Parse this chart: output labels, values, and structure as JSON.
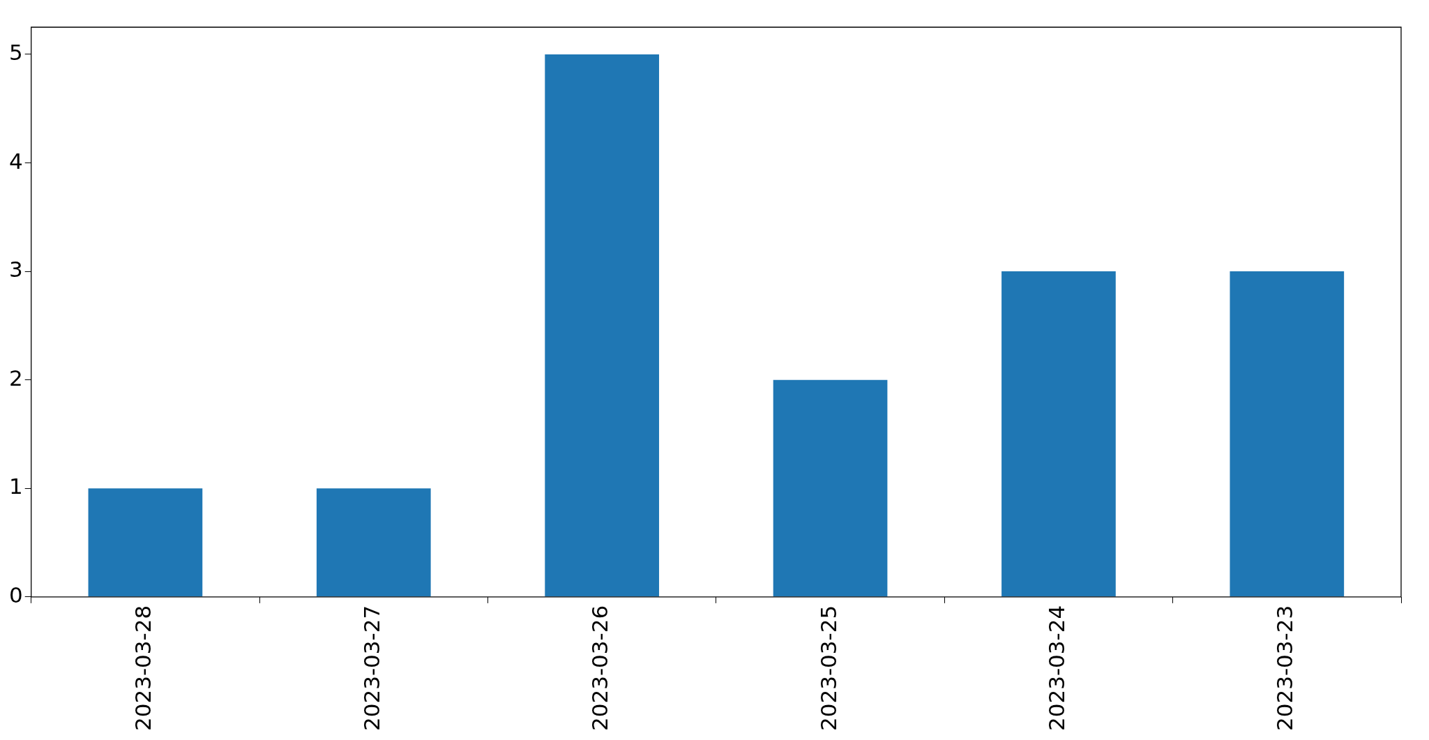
{
  "chart_data": {
    "type": "bar",
    "categories": [
      "2023-03-28",
      "2023-03-27",
      "2023-03-26",
      "2023-03-25",
      "2023-03-24",
      "2023-03-23"
    ],
    "values": [
      1,
      1,
      5,
      2,
      3,
      3
    ],
    "color": "#1f77b4",
    "ylim": [
      0,
      5.25
    ],
    "yticks": [
      0,
      1,
      2,
      3,
      4,
      5
    ]
  }
}
